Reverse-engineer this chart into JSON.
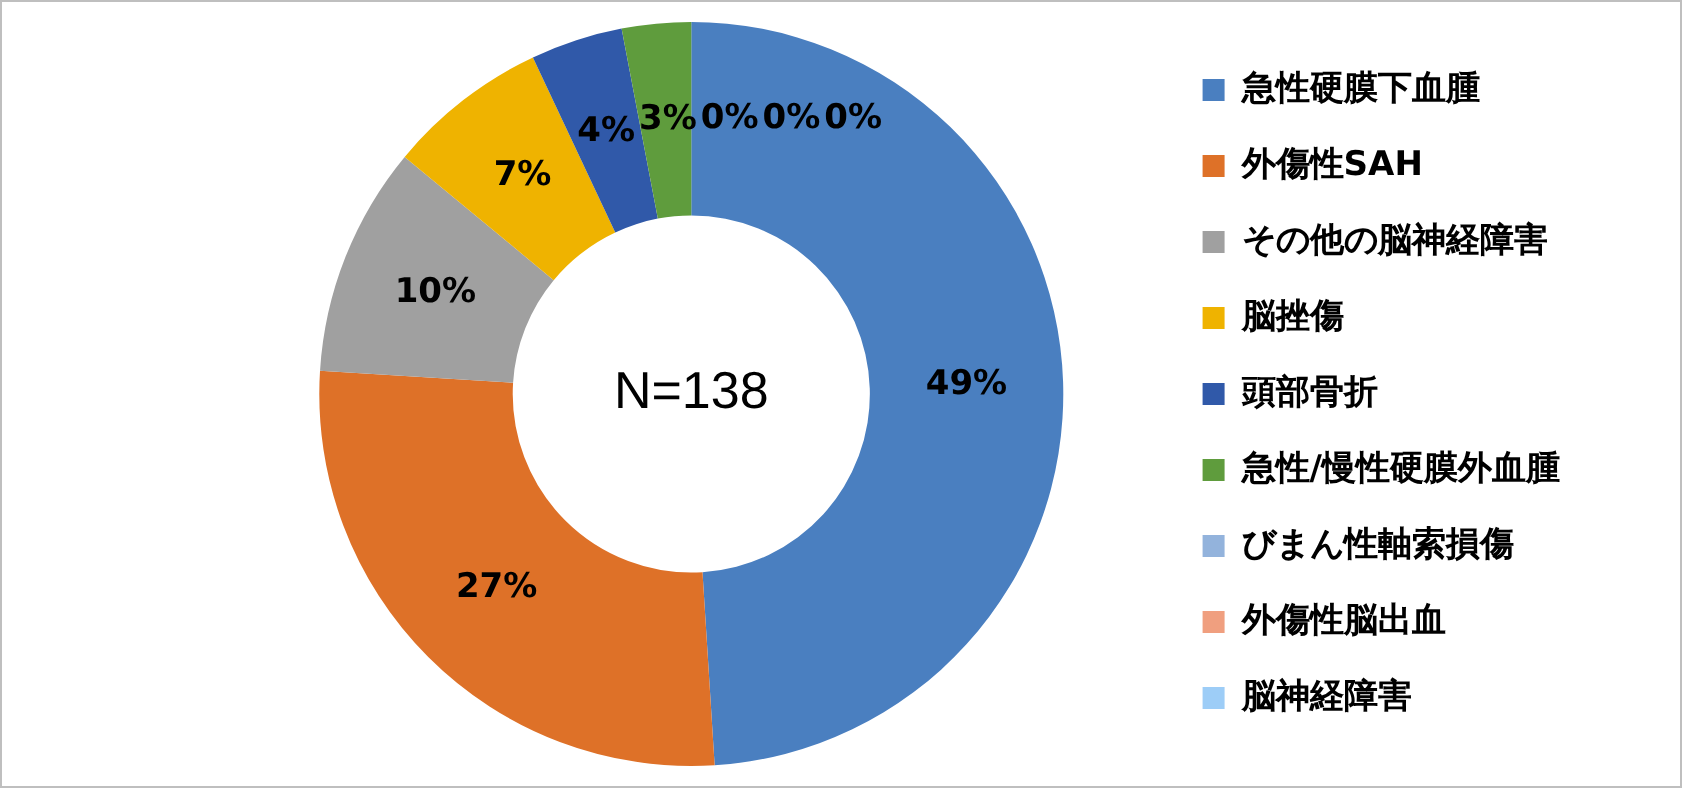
{
  "chart_data": {
    "type": "donut",
    "categories": [
      "急性硬膜下血腫",
      "外傷性SAH",
      "その他の脳神経障害",
      "脳挫傷",
      "頭部骨折",
      "急性/慢性硬膜外血腫",
      "びまん性軸索損傷",
      "外傷性脳出血",
      "脳神経障害"
    ],
    "values": [
      49,
      27,
      10,
      7,
      4,
      3,
      0,
      0,
      0
    ],
    "colors": [
      "#4a7fc0",
      "#de7128",
      "#a0a0a0",
      "#efb300",
      "#3059a9",
      "#5f9c3d",
      "#93b3dc",
      "#f09f7f",
      "#9dcdf7"
    ],
    "value_labels": [
      "49%",
      "27%",
      "10%",
      "7%",
      "4%",
      "3%",
      "0%",
      "0%",
      "0%"
    ],
    "legend": "right",
    "annotations": [
      "N=138"
    ]
  }
}
